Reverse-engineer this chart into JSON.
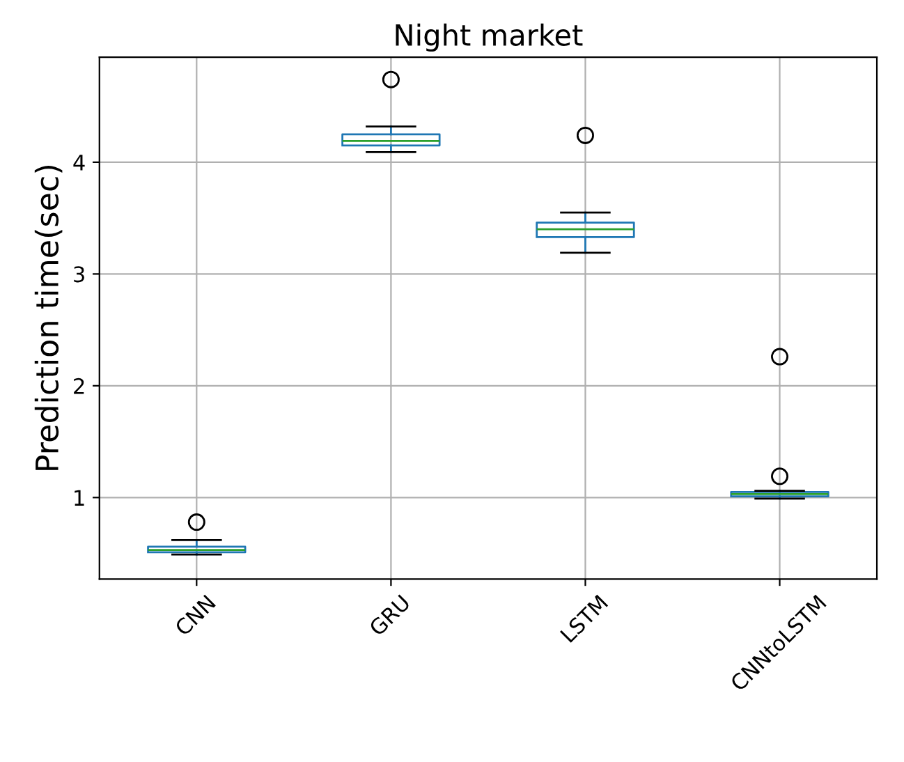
{
  "chart_data": {
    "type": "box",
    "title": "Night market",
    "ylabel": "Prediction time(sec)",
    "categories": [
      "CNN",
      "GRU",
      "LSTM",
      "CNNtoLSTM"
    ],
    "boxes": [
      {
        "low": 0.49,
        "q1": 0.51,
        "median": 0.53,
        "q3": 0.56,
        "high": 0.62,
        "outliers": [
          0.78
        ]
      },
      {
        "low": 4.09,
        "q1": 4.15,
        "median": 4.19,
        "q3": 4.25,
        "high": 4.32,
        "outliers": [
          4.74
        ]
      },
      {
        "low": 3.19,
        "q1": 3.33,
        "median": 3.4,
        "q3": 3.46,
        "high": 3.55,
        "outliers": [
          4.24
        ]
      },
      {
        "low": 0.99,
        "q1": 1.01,
        "median": 1.03,
        "q3": 1.05,
        "high": 1.06,
        "outliers": [
          2.26,
          1.19
        ]
      }
    ],
    "color": "#1f77b4",
    "ylim": [
      0.27,
      4.94
    ],
    "yticks": [
      1,
      2,
      3,
      4
    ],
    "grid": true
  }
}
